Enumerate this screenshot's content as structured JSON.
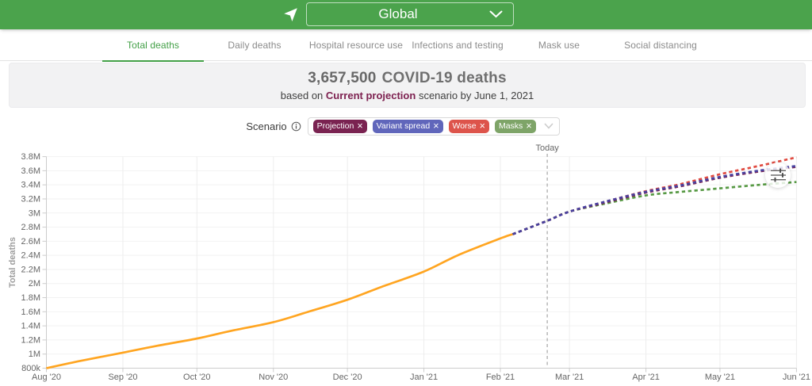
{
  "colors": {
    "accent": "#43a047",
    "appbar_background": "#4ba34c"
  },
  "header": {
    "location_label": "Global"
  },
  "tabs": {
    "items": [
      {
        "label": "Total deaths",
        "active": true
      },
      {
        "label": "Daily deaths",
        "active": false
      },
      {
        "label": "Hospital resource use",
        "active": false
      },
      {
        "label": "Infections and testing",
        "active": false
      },
      {
        "label": "Mask use",
        "active": false
      },
      {
        "label": "Social distancing",
        "active": false
      }
    ]
  },
  "summary": {
    "headline_number": "3,657,500",
    "headline_text": "COVID-19 deaths",
    "subtitle_prefix": "based on",
    "scenario_name": "Current projection",
    "scenario_name_color": "#7d2150",
    "subtitle_suffix": "scenario by June 1, 2021"
  },
  "scenario": {
    "label": "Scenario",
    "remove_symbol": "×",
    "tags": [
      {
        "label": "Projection",
        "color": "#7a2351"
      },
      {
        "label": "Variant spread",
        "color": "#6066bb"
      },
      {
        "label": "Worse",
        "color": "#dd544b"
      },
      {
        "label": "Masks",
        "color": "#7ea468"
      }
    ]
  },
  "chart_data": {
    "type": "line",
    "ylabel": "Total deaths",
    "x_unit": "days since 2020-08-01",
    "x_range": [
      0,
      304
    ],
    "y_range": [
      0.8,
      3.8
    ],
    "y_unit": "millions of deaths",
    "grid": true,
    "x_ticks": [
      {
        "label": "Aug '20",
        "day": 0
      },
      {
        "label": "Sep '20",
        "day": 31
      },
      {
        "label": "Oct '20",
        "day": 61
      },
      {
        "label": "Nov '20",
        "day": 92
      },
      {
        "label": "Dec '20",
        "day": 122
      },
      {
        "label": "Jan '21",
        "day": 153
      },
      {
        "label": "Feb '21",
        "day": 184
      },
      {
        "label": "Mar '21",
        "day": 212
      },
      {
        "label": "Apr '21",
        "day": 243
      },
      {
        "label": "May '21",
        "day": 273
      },
      {
        "label": "Jun '21",
        "day": 304
      }
    ],
    "y_ticks": [
      {
        "label": "800k",
        "value": 0.8
      },
      {
        "label": "1M",
        "value": 1.0
      },
      {
        "label": "1.2M",
        "value": 1.2
      },
      {
        "label": "1.4M",
        "value": 1.4
      },
      {
        "label": "1.6M",
        "value": 1.6
      },
      {
        "label": "1.8M",
        "value": 1.8
      },
      {
        "label": "2M",
        "value": 2.0
      },
      {
        "label": "2.2M",
        "value": 2.2
      },
      {
        "label": "2.4M",
        "value": 2.4
      },
      {
        "label": "2.6M",
        "value": 2.6
      },
      {
        "label": "2.8M",
        "value": 2.8
      },
      {
        "label": "3M",
        "value": 3.0
      },
      {
        "label": "3.2M",
        "value": 3.2
      },
      {
        "label": "3.4M",
        "value": 3.4
      },
      {
        "label": "3.6M",
        "value": 3.6
      },
      {
        "label": "3.8M",
        "value": 3.8
      }
    ],
    "today": {
      "label": "Today",
      "day": 203
    },
    "series": [
      {
        "name": "Observed",
        "style": "solid",
        "color": "#ffa521",
        "points": [
          [
            0,
            0.8
          ],
          [
            14,
            0.905
          ],
          [
            31,
            1.02
          ],
          [
            45,
            1.118
          ],
          [
            61,
            1.22
          ],
          [
            75,
            1.33
          ],
          [
            92,
            1.452
          ],
          [
            106,
            1.598
          ],
          [
            122,
            1.77
          ],
          [
            136,
            1.955
          ],
          [
            153,
            2.17
          ],
          [
            167,
            2.405
          ],
          [
            184,
            2.64
          ],
          [
            189,
            2.7
          ]
        ]
      },
      {
        "name": "Worse",
        "style": "dashed",
        "color": "#e04b41",
        "points": [
          [
            189,
            2.7
          ],
          [
            203,
            2.89
          ],
          [
            212,
            3.02
          ],
          [
            226,
            3.155
          ],
          [
            243,
            3.31
          ],
          [
            257,
            3.41
          ],
          [
            273,
            3.55
          ],
          [
            289,
            3.67
          ],
          [
            304,
            3.79
          ]
        ]
      },
      {
        "name": "Masks",
        "style": "dashed",
        "color": "#579944",
        "points": [
          [
            189,
            2.7
          ],
          [
            203,
            2.89
          ],
          [
            212,
            3.02
          ],
          [
            226,
            3.13
          ],
          [
            243,
            3.25
          ],
          [
            257,
            3.3
          ],
          [
            273,
            3.35
          ],
          [
            289,
            3.4
          ],
          [
            304,
            3.44
          ]
        ]
      },
      {
        "name": "Current projection",
        "style": "dashed",
        "color": "#7a2351",
        "points": [
          [
            189,
            2.7
          ],
          [
            203,
            2.89
          ],
          [
            212,
            3.02
          ],
          [
            226,
            3.145
          ],
          [
            243,
            3.29
          ],
          [
            257,
            3.38
          ],
          [
            273,
            3.5
          ],
          [
            289,
            3.59
          ],
          [
            304,
            3.655
          ]
        ]
      },
      {
        "name": "Variant spread",
        "style": "dashed",
        "color": "#4841a0",
        "points": [
          [
            189,
            2.7
          ],
          [
            203,
            2.89
          ],
          [
            212,
            3.02
          ],
          [
            226,
            3.157
          ],
          [
            243,
            3.302
          ],
          [
            257,
            3.392
          ],
          [
            273,
            3.512
          ],
          [
            289,
            3.602
          ],
          [
            304,
            3.667
          ]
        ]
      }
    ]
  }
}
